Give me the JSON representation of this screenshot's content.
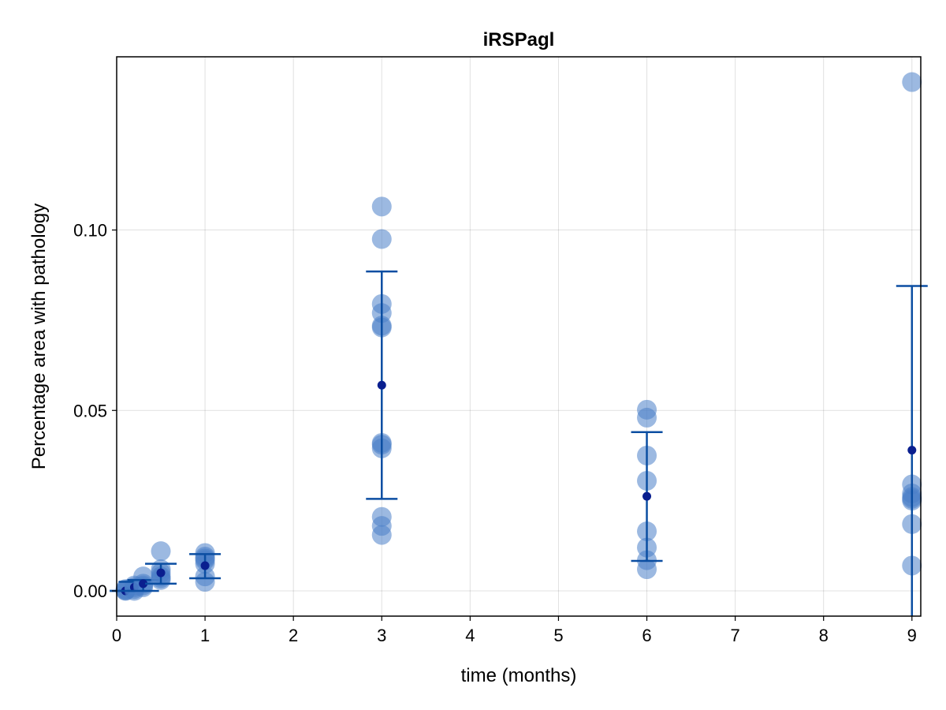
{
  "chart_data": {
    "type": "scatter",
    "title": "iRSPagl",
    "xlabel": "time (months)",
    "ylabel": "Percentage area with pathology",
    "xlim": [
      0,
      9.1
    ],
    "ylim": [
      -0.007,
      0.148
    ],
    "xticks": [
      "0",
      "1",
      "2",
      "3",
      "4",
      "5",
      "6",
      "7",
      "8",
      "9"
    ],
    "yticks": [
      "0.00",
      "0.05",
      "0.10"
    ],
    "grid": true,
    "colors": {
      "points": "#4a7fc9",
      "errorbar": "#0b4ea2",
      "mean": "#0a1f8f"
    },
    "groups": [
      {
        "x": 0.1,
        "mean": 0.0,
        "err_low": 0.0,
        "err_high": 0.0,
        "points": [
          0.0,
          0.0003,
          0.0005,
          0.0001
        ]
      },
      {
        "x": 0.2,
        "mean": 0.001,
        "err_low": 0.0,
        "err_high": 0.0025,
        "points": [
          0.0,
          0.0005,
          0.001,
          0.0015
        ]
      },
      {
        "x": 0.3,
        "mean": 0.002,
        "err_low": 0.0,
        "err_high": 0.003,
        "points": [
          0.001,
          0.002,
          0.004,
          0.0015
        ]
      },
      {
        "x": 0.5,
        "mean": 0.005,
        "err_low": 0.002,
        "err_high": 0.0075,
        "points": [
          0.011,
          0.006,
          0.005,
          0.004,
          0.0035,
          0.003
        ]
      },
      {
        "x": 1.0,
        "mean": 0.007,
        "err_low": 0.0035,
        "err_high": 0.0102,
        "points": [
          0.0105,
          0.0095,
          0.009,
          0.0085,
          0.0075,
          0.004,
          0.0025
        ]
      },
      {
        "x": 3.0,
        "mean": 0.057,
        "err_low": 0.0255,
        "err_high": 0.0885,
        "points": [
          0.1065,
          0.0975,
          0.0795,
          0.077,
          0.0735,
          0.073,
          0.041,
          0.0405,
          0.0395,
          0.0205,
          0.018,
          0.0155
        ]
      },
      {
        "x": 6.0,
        "mean": 0.0262,
        "err_low": 0.0083,
        "err_high": 0.044,
        "points": [
          0.0502,
          0.048,
          0.0375,
          0.0305,
          0.0165,
          0.012,
          0.0085,
          0.006
        ]
      },
      {
        "x": 9.0,
        "mean": 0.039,
        "err_low": null,
        "err_high": 0.0845,
        "points": [
          0.141,
          0.0295,
          0.027,
          0.026,
          0.0255,
          0.025,
          0.0185,
          0.007
        ]
      }
    ]
  }
}
